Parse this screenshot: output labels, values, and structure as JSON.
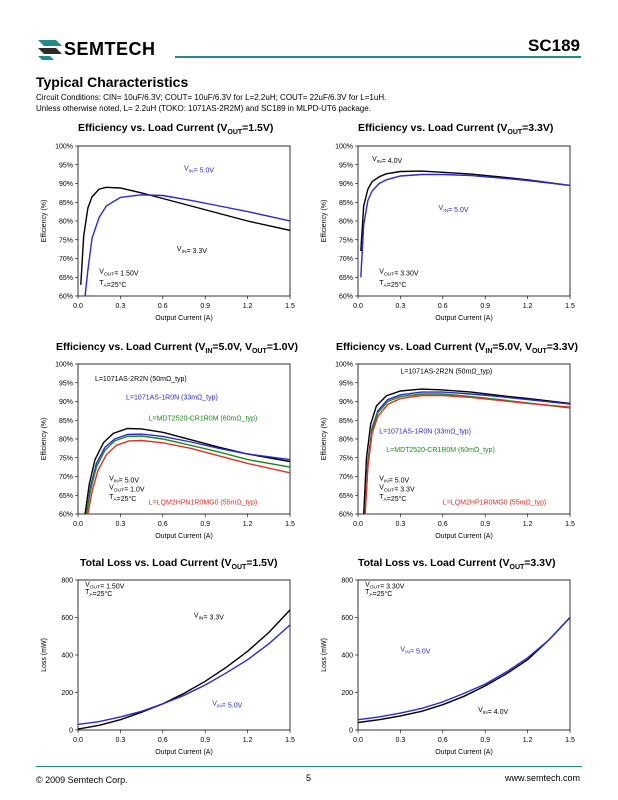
{
  "header": {
    "brand": "SEMTECH",
    "part": "SC189"
  },
  "section_title": "Typical Characteristics",
  "conditions": {
    "line1": "Circuit Conditions: CIN= 10uF/6.3V; COUT= 10uF/6.3V for L=2.2uH; COUT= 22uF/6.3V for L=1uH.",
    "line2": "Unless otherwise noted, L= 2.2uH (TOKO: 1071AS-2R2M) and SC189 in MLPD-UT6 package."
  },
  "footer": {
    "copyright": "© 2009 Semtech Corp.",
    "page": "5",
    "url": "www.semtech.com"
  },
  "colors": {
    "black": "#000000",
    "blue": "#2a2ad0",
    "green": "#1a8a1a",
    "red": "#e0302a",
    "teal": "#1f8d86"
  },
  "chart_data": [
    {
      "id": "c1",
      "type": "line",
      "title": "Efficiency vs. Load Current (VOUT=1.5V)",
      "xlabel": "Output Current (A)",
      "ylabel": "Efficiency (%)",
      "xlim": [
        0,
        1.5
      ],
      "ylim": [
        60,
        100
      ],
      "xticks": [
        "0.0",
        "0.3",
        "0.6",
        "0.9",
        "1.2",
        "1.5"
      ],
      "yticks": [
        "60%",
        "65%",
        "70%",
        "75%",
        "80%",
        "85%",
        "90%",
        "95%",
        "100%"
      ],
      "series": [
        {
          "name": "VIN= 3.3V",
          "color": "#000000",
          "x": [
            0.02,
            0.04,
            0.07,
            0.1,
            0.15,
            0.2,
            0.3,
            0.45,
            0.6,
            0.8,
            1.0,
            1.2,
            1.5
          ],
          "y": [
            63,
            76,
            83.5,
            86.5,
            88.5,
            89,
            88.8,
            87.5,
            86,
            84,
            82,
            80,
            77.5
          ]
        },
        {
          "name": "VIN= 5.0V",
          "color": "#2a2ad0",
          "x": [
            0.05,
            0.07,
            0.1,
            0.15,
            0.2,
            0.3,
            0.45,
            0.6,
            0.8,
            1.0,
            1.2,
            1.5
          ],
          "y": [
            60,
            67,
            75.5,
            81,
            84,
            86.3,
            87,
            86.8,
            85.5,
            84,
            82.5,
            80
          ]
        }
      ],
      "annotations": [
        "VIN= 5.0V",
        "VIN= 3.3V",
        "VOUT= 1.50V",
        "TA=25°C"
      ]
    },
    {
      "id": "c2",
      "type": "line",
      "title": "Efficiency vs. Load Current (VOUT=3.3V)",
      "xlabel": "Output Current (A)",
      "ylabel": "Efficiency (%)",
      "xlim": [
        0,
        1.5
      ],
      "ylim": [
        60,
        100
      ],
      "xticks": [
        "0.0",
        "0.3",
        "0.6",
        "0.9",
        "1.2",
        "1.5"
      ],
      "yticks": [
        "60%",
        "65%",
        "70%",
        "75%",
        "80%",
        "85%",
        "90%",
        "95%",
        "100%"
      ],
      "series": [
        {
          "name": "VIN= 4.0V",
          "color": "#000000",
          "x": [
            0.02,
            0.04,
            0.07,
            0.1,
            0.15,
            0.2,
            0.3,
            0.45,
            0.6,
            0.8,
            1.0,
            1.2,
            1.5
          ],
          "y": [
            72,
            84,
            88.5,
            90.5,
            91.8,
            92.6,
            93.2,
            93.3,
            93,
            92.5,
            91.8,
            91,
            89.5
          ]
        },
        {
          "name": "VIN= 5.0V",
          "color": "#2a2ad0",
          "x": [
            0.02,
            0.04,
            0.07,
            0.1,
            0.15,
            0.2,
            0.3,
            0.45,
            0.6,
            0.8,
            1.0,
            1.2,
            1.5
          ],
          "y": [
            65,
            79,
            85.5,
            88,
            90,
            91,
            92,
            92.4,
            92.4,
            92.1,
            91.5,
            90.8,
            89.5
          ]
        }
      ],
      "annotations": [
        "VIN= 4.0V",
        "VIN= 5.0V",
        "VOUT= 3.30V",
        "TA=25°C"
      ]
    },
    {
      "id": "c3",
      "type": "line",
      "title": "Efficiency vs. Load Current (VIN=5.0V, VOUT=1.0V)",
      "xlabel": "Output Current (A)",
      "ylabel": "Efficiency (%)",
      "xlim": [
        0,
        1.5
      ],
      "ylim": [
        60,
        100
      ],
      "xticks": [
        "0.0",
        "0.3",
        "0.6",
        "0.9",
        "1.2",
        "1.5"
      ],
      "yticks": [
        "60%",
        "65%",
        "70%",
        "75%",
        "80%",
        "85%",
        "90%",
        "95%",
        "100%"
      ],
      "series": [
        {
          "name": "L=1071AS-2R2N (50mΩ_typ)",
          "color": "#000000",
          "x": [
            0.05,
            0.08,
            0.12,
            0.18,
            0.25,
            0.35,
            0.45,
            0.6,
            0.8,
            1.0,
            1.2,
            1.5
          ],
          "y": [
            60,
            68,
            74.5,
            79,
            81.5,
            82.8,
            82.7,
            81.8,
            79.8,
            77.8,
            76,
            74
          ]
        },
        {
          "name": "L=1071AS-1R0N (33mΩ_typ)",
          "color": "#2a2ad0",
          "x": [
            0.06,
            0.09,
            0.13,
            0.19,
            0.26,
            0.35,
            0.45,
            0.6,
            0.8,
            1.0,
            1.2,
            1.5
          ],
          "y": [
            60,
            67.5,
            73.5,
            77.8,
            80,
            81.2,
            81.3,
            80.7,
            79.2,
            77.5,
            76,
            74.5
          ]
        },
        {
          "name": "L=MDT2520-CR1R0M (60mΩ_typ)",
          "color": "#1a8a1a",
          "x": [
            0.06,
            0.09,
            0.13,
            0.19,
            0.26,
            0.35,
            0.45,
            0.6,
            0.8,
            1.0,
            1.2,
            1.5
          ],
          "y": [
            60,
            66.5,
            72.5,
            77,
            79.5,
            80.7,
            80.8,
            80,
            78.3,
            76.5,
            74.5,
            72.5
          ]
        },
        {
          "name": "L=LQM2HPN1R0MG0 (55mΩ_typ)",
          "color": "#e0302a",
          "x": [
            0.07,
            0.1,
            0.14,
            0.2,
            0.27,
            0.36,
            0.45,
            0.6,
            0.8,
            1.0,
            1.2,
            1.5
          ],
          "y": [
            60,
            66,
            71.5,
            75.8,
            78.3,
            79.5,
            79.6,
            79,
            77.5,
            75.5,
            73.5,
            71
          ]
        }
      ],
      "annotations": [
        "L=1071AS-2R2N (50mΩ_typ)",
        "L=1071AS-1R0N (33mΩ_typ)",
        "L=MDT2520-CR1R0M (60mΩ_typ)",
        "L=LQM2HPN1R0MG0 (55mΩ_typ)",
        "VIN= 5.0V",
        "VOUT= 1.0V",
        "TA=25°C"
      ]
    },
    {
      "id": "c4",
      "type": "line",
      "title": "Efficiency vs. Load Current (VIN=5.0V, VOUT=3.3V)",
      "xlabel": "Output Current (A)",
      "ylabel": "Efficiency (%)",
      "xlim": [
        0,
        1.5
      ],
      "ylim": [
        60,
        100
      ],
      "xticks": [
        "0.0",
        "0.3",
        "0.6",
        "0.9",
        "1.2",
        "1.5"
      ],
      "yticks": [
        "60%",
        "65%",
        "70%",
        "75%",
        "80%",
        "85%",
        "90%",
        "95%",
        "100%"
      ],
      "series": [
        {
          "name": "L=1071AS-2R2N (50mΩ_typ)",
          "color": "#000000",
          "x": [
            0.04,
            0.06,
            0.09,
            0.13,
            0.2,
            0.3,
            0.45,
            0.6,
            0.8,
            1.0,
            1.2,
            1.5
          ],
          "y": [
            60,
            75,
            84,
            88.8,
            91.5,
            92.8,
            93.3,
            93.1,
            92.5,
            91.6,
            90.8,
            89.5
          ]
        },
        {
          "name": "L=1071AS-1R0N (33mΩ_typ)",
          "color": "#2a2ad0",
          "x": [
            0.05,
            0.07,
            0.1,
            0.14,
            0.21,
            0.3,
            0.45,
            0.6,
            0.8,
            1.0,
            1.2,
            1.5
          ],
          "y": [
            60,
            74,
            83,
            87.5,
            90.5,
            91.8,
            92.5,
            92.5,
            92,
            91.3,
            90.5,
            89.3
          ]
        },
        {
          "name": "L=MDT2520-CR1R0M (60mΩ_typ)",
          "color": "#1a8a1a",
          "x": [
            0.05,
            0.07,
            0.1,
            0.14,
            0.21,
            0.3,
            0.45,
            0.6,
            0.8,
            1.0,
            1.2,
            1.5
          ],
          "y": [
            60,
            73.5,
            82.5,
            87,
            90,
            91.3,
            92,
            92,
            91.3,
            90.5,
            89.6,
            88.3
          ]
        },
        {
          "name": "L=LQM2HP1R0MG0 (55mΩ_typ)",
          "color": "#e0302a",
          "x": [
            0.05,
            0.07,
            0.1,
            0.14,
            0.21,
            0.3,
            0.45,
            0.6,
            0.8,
            1.0,
            1.2,
            1.5
          ],
          "y": [
            60,
            72.5,
            81.5,
            86,
            89.2,
            90.8,
            91.6,
            91.6,
            91.1,
            90.3,
            89.5,
            88.5
          ]
        }
      ],
      "annotations": [
        "L=1071AS-2R2N (50mΩ_typ)",
        "L=1071AS-1R0N (33mΩ_typ)",
        "L=MDT2520-CR1R0M (60mΩ_typ)",
        "L=LQM2HP1R0MG0 (55mΩ_typ)",
        "VIN= 5.0V",
        "VOUT= 3.3V",
        "TA=25°C"
      ]
    },
    {
      "id": "c5",
      "type": "line",
      "title": "Total Loss vs. Load Current (VOUT=1.5V)",
      "xlabel": "Output Current (A)",
      "ylabel": "Loss (mW)",
      "xlim": [
        0,
        1.5
      ],
      "ylim": [
        0,
        800
      ],
      "xticks": [
        "0.0",
        "0.3",
        "0.6",
        "0.9",
        "1.2",
        "1.5"
      ],
      "yticks": [
        "0",
        "200",
        "400",
        "600",
        "800"
      ],
      "series": [
        {
          "name": "VIN= 3.3V",
          "color": "#000000",
          "x": [
            0,
            0.15,
            0.3,
            0.45,
            0.6,
            0.75,
            0.9,
            1.05,
            1.2,
            1.35,
            1.5
          ],
          "y": [
            5,
            25,
            55,
            95,
            140,
            195,
            260,
            335,
            420,
            520,
            640
          ]
        },
        {
          "name": "VIN= 5.0V",
          "color": "#2a2ad0",
          "x": [
            0,
            0.15,
            0.3,
            0.45,
            0.6,
            0.75,
            0.9,
            1.05,
            1.2,
            1.35,
            1.5
          ],
          "y": [
            30,
            45,
            70,
            100,
            140,
            185,
            240,
            305,
            375,
            460,
            560
          ]
        }
      ],
      "annotations": [
        "VOUT= 1.50V",
        "TA=25°C",
        "VIN= 3.3V",
        "VIN= 5.0V"
      ]
    },
    {
      "id": "c6",
      "type": "line",
      "title": "Total Loss vs. Load Current (VOUT=3.3V)",
      "xlabel": "Output Current (A)",
      "ylabel": "Loss (mW)",
      "xlim": [
        0,
        1.5
      ],
      "ylim": [
        0,
        800
      ],
      "xticks": [
        "0.0",
        "0.3",
        "0.6",
        "0.9",
        "1.2",
        "1.5"
      ],
      "yticks": [
        "0",
        "200",
        "400",
        "600",
        "800"
      ],
      "series": [
        {
          "name": "VIN= 4.0V",
          "color": "#000000",
          "x": [
            0,
            0.15,
            0.3,
            0.45,
            0.6,
            0.75,
            0.9,
            1.05,
            1.2,
            1.35,
            1.5
          ],
          "y": [
            40,
            55,
            75,
            100,
            135,
            180,
            235,
            300,
            375,
            480,
            600
          ]
        },
        {
          "name": "VIN= 5.0V",
          "color": "#2a2ad0",
          "x": [
            0,
            0.15,
            0.3,
            0.45,
            0.6,
            0.75,
            0.9,
            1.05,
            1.2,
            1.35,
            1.5
          ],
          "y": [
            55,
            70,
            90,
            115,
            150,
            195,
            245,
            310,
            385,
            480,
            600
          ]
        }
      ],
      "annotations": [
        "VOUT= 3.30V",
        "TA=25°C",
        "VIN= 5.0V",
        "VIN= 4.0V"
      ]
    }
  ]
}
